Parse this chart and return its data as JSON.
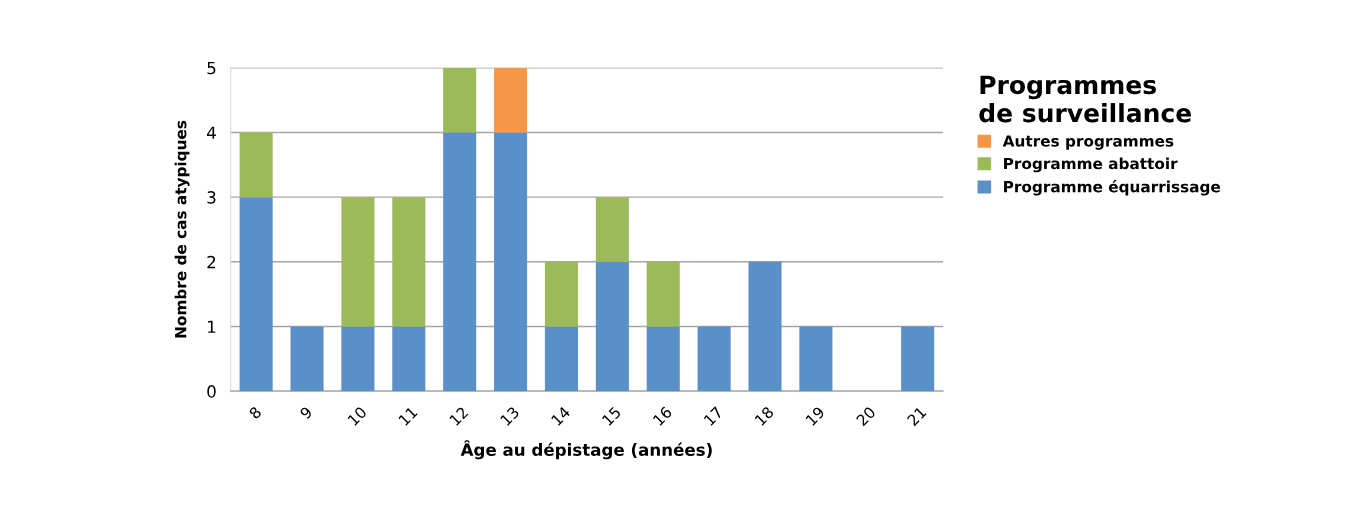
{
  "chart_data": {
    "type": "bar",
    "stacked": true,
    "xlabel": "Âge au dépistage (années)",
    "ylabel": "Nombre de cas atypiques",
    "legend_title": "Programmes\nde surveillance",
    "categories": [
      "8",
      "9",
      "10",
      "11",
      "12",
      "13",
      "14",
      "15",
      "16",
      "17",
      "18",
      "19",
      "20",
      "21"
    ],
    "series": [
      {
        "name": "Programme équarrissage",
        "color": "#5b8fc7",
        "values": [
          3,
          1,
          1,
          1,
          4,
          4,
          1,
          2,
          1,
          1,
          2,
          1,
          0,
          1
        ]
      },
      {
        "name": "Programme abattoir",
        "color": "#9bbb59",
        "values": [
          1,
          0,
          2,
          2,
          1,
          0,
          1,
          1,
          1,
          0,
          0,
          0,
          0,
          0
        ]
      },
      {
        "name": "Autres programmes",
        "color": "#f79646",
        "values": [
          0,
          0,
          0,
          0,
          0,
          1,
          0,
          0,
          0,
          0,
          0,
          0,
          0,
          0
        ]
      }
    ],
    "ylim": [
      0,
      5
    ],
    "yticks": [
      0,
      1,
      2,
      3,
      4,
      5
    ],
    "grid": "y",
    "legend": "right"
  }
}
